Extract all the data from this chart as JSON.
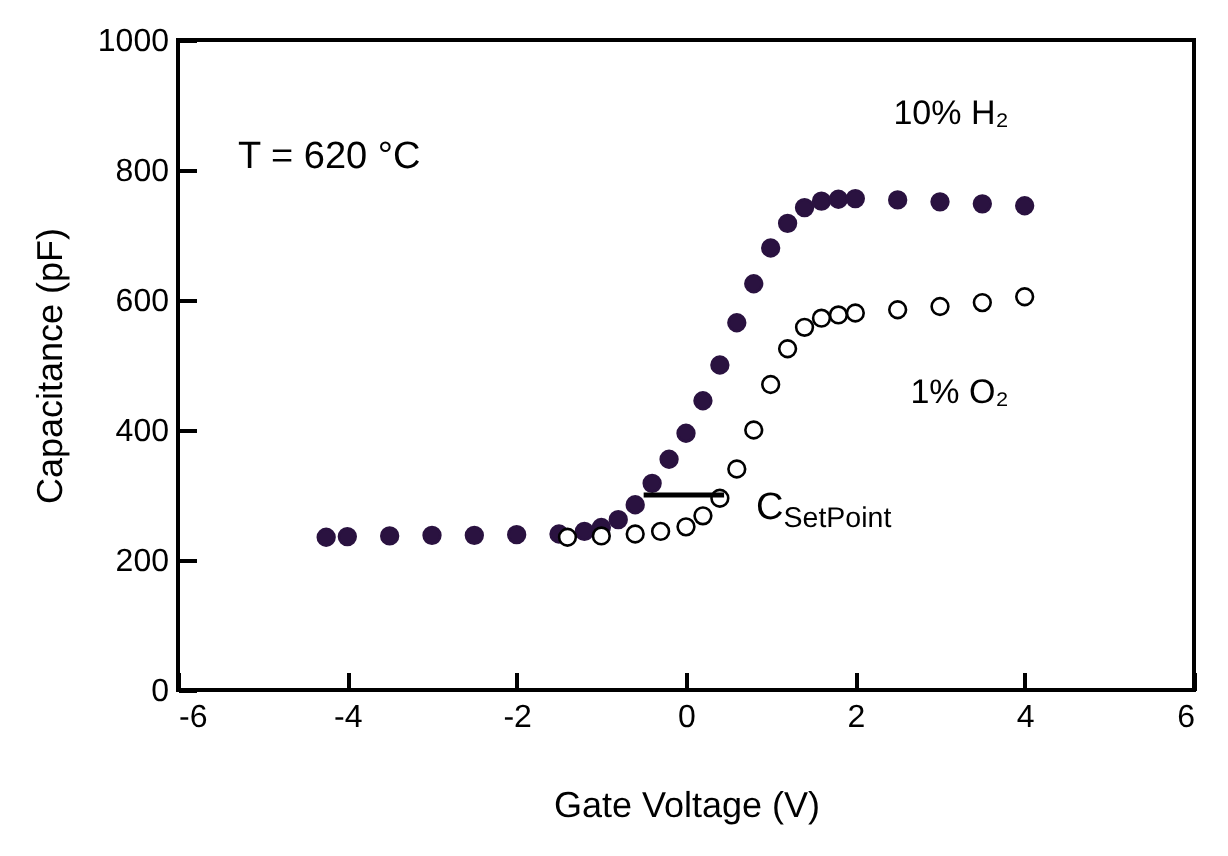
{
  "chart_data": {
    "type": "scatter",
    "xlabel": "Gate Voltage (V)",
    "ylabel": "Capacitance (pF)",
    "xlim": [
      -6,
      6
    ],
    "xticks": [
      -6,
      -4,
      -2,
      0,
      2,
      4,
      6
    ],
    "ylim": [
      0,
      1000
    ],
    "yticks": [
      0,
      200,
      400,
      600,
      800,
      1000
    ],
    "grid": false,
    "annotations": [
      "T = 620 °C",
      {
        "text": "C$_{SetPoint}$",
        "x": 0.45,
        "y": 300
      }
    ],
    "series": [
      {
        "name": "10% H₂",
        "color": "#2a1240",
        "marker": "circle",
        "x": [
          -4.25,
          -4,
          -3.5,
          -3,
          -2.5,
          -2,
          -1.5,
          -1.2,
          -1,
          -0.8,
          -0.6,
          -0.4,
          -0.2,
          0,
          0.2,
          0.4,
          0.6,
          0.8,
          1,
          1.2,
          1.4,
          1.6,
          1.8,
          2,
          2.5,
          3,
          3.5,
          4
        ],
        "values": [
          235,
          236,
          237,
          238,
          238,
          239,
          240,
          244,
          250,
          262,
          285,
          318,
          355,
          395,
          445,
          500,
          565,
          625,
          680,
          718,
          742,
          752,
          755,
          756,
          754,
          751,
          748,
          745
        ]
      },
      {
        "name": "1% O₂",
        "color": "#000000",
        "marker": "circle",
        "x": [
          -1.4,
          -1,
          -0.6,
          -0.3,
          0,
          0.2,
          0.4,
          0.6,
          0.8,
          1,
          1.2,
          1.4,
          1.6,
          1.8,
          2,
          2.5,
          3,
          3.5,
          4
        ],
        "values": [
          235,
          237,
          240,
          244,
          251,
          268,
          295,
          340,
          400,
          470,
          525,
          558,
          572,
          577,
          580,
          585,
          590,
          596,
          605
        ]
      },
      {
        "type": "line",
        "color": "#000000",
        "x": [
          -0.5,
          0.45
        ],
        "values": [
          300,
          300
        ]
      }
    ]
  }
}
